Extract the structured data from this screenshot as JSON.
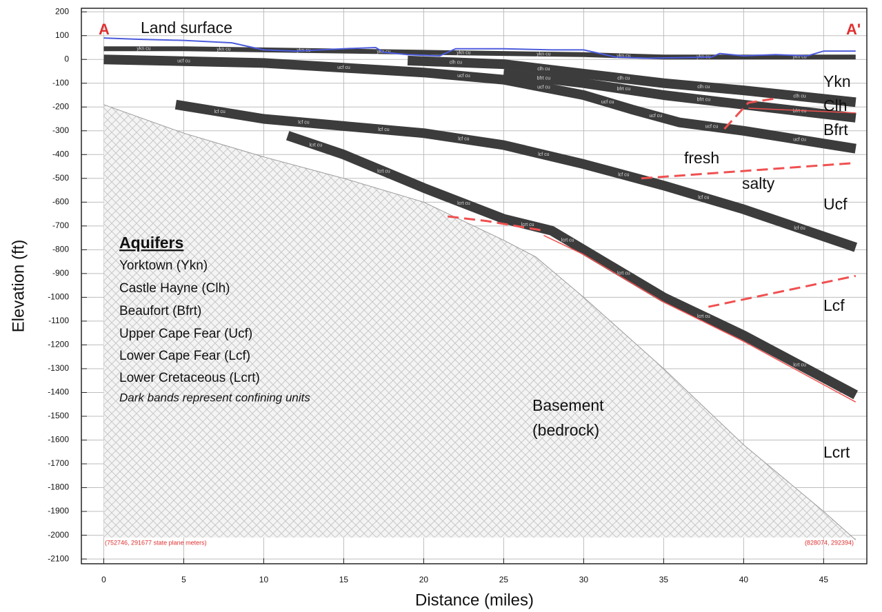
{
  "chart_data": {
    "type": "cross-section",
    "x_label": "Distance (miles)",
    "y_label": "Elevation (ft)",
    "xlim": [
      -1.4,
      47.7
    ],
    "ylim": [
      -2120,
      215
    ],
    "xticks": [
      0,
      5,
      10,
      15,
      20,
      25,
      30,
      35,
      40,
      45
    ],
    "yticks": [
      -2100,
      -2000,
      -1900,
      -1800,
      -1700,
      -1600,
      -1500,
      -1400,
      -1300,
      -1200,
      -1100,
      -1000,
      -900,
      -800,
      -700,
      -600,
      -500,
      -400,
      -300,
      -200,
      -100,
      0,
      100,
      200
    ],
    "grid": true,
    "land_surface": {
      "name": "Land surface",
      "color": "#4b5bdb",
      "x": [
        0,
        2,
        5,
        8,
        10,
        12,
        15,
        17,
        17.5,
        19,
        21,
        22,
        25,
        28,
        30,
        32,
        34,
        38,
        38.5,
        40,
        42,
        44,
        45,
        47
      ],
      "values": [
        90,
        85,
        80,
        70,
        40,
        35,
        45,
        50,
        30,
        20,
        15,
        45,
        45,
        40,
        40,
        10,
        5,
        10,
        25,
        15,
        20,
        15,
        35,
        35
      ]
    },
    "confining_units": [
      {
        "name": "ykn cu",
        "color": "#3c3c3c",
        "x": [
          0,
          5,
          10,
          15,
          20,
          25,
          30,
          35,
          40,
          47
        ],
        "values": [
          45,
          45,
          40,
          35,
          30,
          25,
          20,
          10,
          10,
          10
        ]
      },
      {
        "name": "clh cu",
        "color": "#3c3c3c",
        "x": [
          19,
          25,
          30,
          35,
          40,
          47
        ],
        "values": [
          -5,
          -20,
          -60,
          -100,
          -130,
          -180
        ]
      },
      {
        "name": "bfrt cu",
        "color": "#3c3c3c",
        "x": [
          25,
          30,
          35,
          40,
          47
        ],
        "values": [
          -60,
          -100,
          -150,
          -190,
          -245
        ]
      },
      {
        "name": "ucf cu",
        "color": "#3c3c3c",
        "x": [
          0,
          10,
          20,
          25,
          30,
          33,
          36,
          40,
          47
        ],
        "values": [
          0,
          -15,
          -55,
          -85,
          -150,
          -210,
          -265,
          -300,
          -375
        ]
      },
      {
        "name": "lcf cu",
        "color": "#3c3c3c",
        "x": [
          4.5,
          10,
          15,
          20,
          25,
          30,
          35,
          40,
          47
        ],
        "values": [
          -190,
          -250,
          -280,
          -310,
          -360,
          -440,
          -530,
          -630,
          -790
        ]
      },
      {
        "name": "lcrt cu",
        "color": "#3c3c3c",
        "x": [
          11.5,
          15,
          20,
          25,
          28,
          30,
          35,
          40,
          47
        ],
        "values": [
          -320,
          -400,
          -540,
          -670,
          -720,
          -800,
          -1000,
          -1160,
          -1410
        ]
      }
    ],
    "basement": {
      "name_lines": [
        "Basement",
        "(bedrock)"
      ],
      "color": "#9a9a9a",
      "x": [
        0,
        5,
        10,
        15,
        20,
        25,
        27,
        30,
        35,
        40,
        45,
        47
      ],
      "values": [
        -190,
        -310,
        -410,
        -500,
        -600,
        -760,
        -830,
        -1000,
        -1300,
        -1620,
        -1900,
        -2020
      ],
      "base": -2010
    },
    "interfaces": [
      {
        "color": "#f05050",
        "style": "dashed",
        "x": [
          21.5,
          24,
          27.5
        ],
        "values": [
          -660,
          -680,
          -720
        ]
      },
      {
        "color": "#f05050",
        "style": "solid",
        "x": [
          27.5,
          30,
          35,
          40,
          47
        ],
        "values": [
          -740,
          -820,
          -1020,
          -1185,
          -1440
        ]
      },
      {
        "color": "#f05050",
        "style": "dashed",
        "x": [
          37.8,
          47
        ],
        "values": [
          -1040,
          -910
        ]
      },
      {
        "color": "#f05050",
        "style": "dashed",
        "x": [
          33.6,
          47
        ],
        "values": [
          -500,
          -435
        ]
      },
      {
        "color": "#f05050",
        "style": "dashed",
        "x": [
          38.8,
          40.3,
          42.2
        ],
        "values": [
          -292,
          -182,
          -162
        ]
      },
      {
        "color": "#f05050",
        "style": "solid",
        "x": [
          40.3,
          47
        ],
        "values": [
          -205,
          -225
        ]
      }
    ],
    "section_ends": [
      "A",
      "A'"
    ],
    "aquifer_labels": [
      "Ykn",
      "Clh",
      "Bfrt",
      "Ucf",
      "Lcf",
      "Lcrt"
    ],
    "zone_labels": [
      "fresh",
      "salty"
    ],
    "legend": {
      "title": "Aquifers",
      "items": [
        "Yorktown (Ykn)",
        "Castle Hayne (Clh)",
        "Beaufort (Bfrt)",
        "Upper Cape Fear (Ucf)",
        "Lower Cape Fear (Lcf)",
        "Lower Cretaceous (Lcrt)"
      ],
      "note": "Dark bands represent confining units"
    },
    "coordinates": [
      "(752746, 291677 state plane meters)",
      "(828074, 292394)"
    ]
  }
}
